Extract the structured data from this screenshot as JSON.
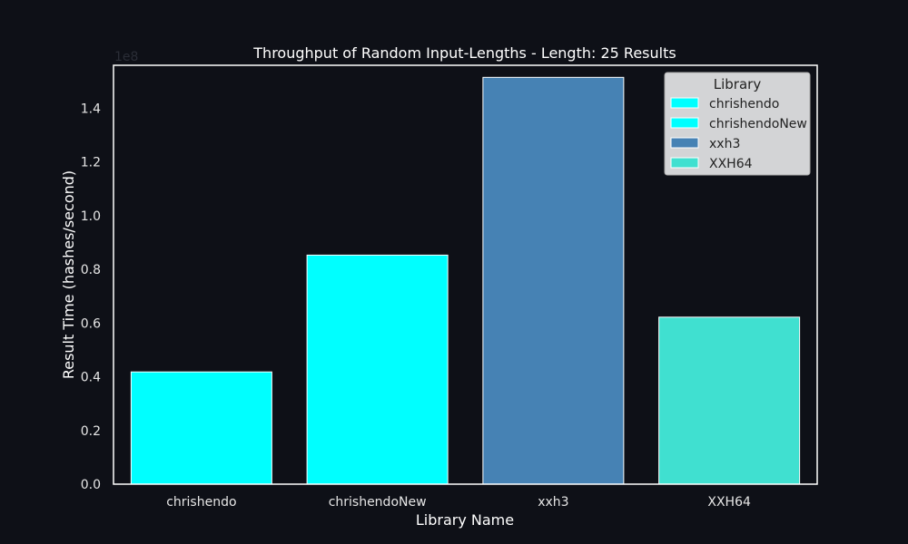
{
  "chart_data": {
    "type": "bar",
    "title": "Throughput of Random Input-Lengths - Length: 25 Results",
    "xlabel": "Library Name",
    "ylabel": "Result Time (hashes/second)",
    "y_offset_label": "1e8",
    "y_scale_factor": 100000000,
    "categories": [
      "chrishendo",
      "chrishendoNew",
      "xxh3",
      "XXH64"
    ],
    "values": [
      41800000,
      85300000,
      151500000,
      62200000
    ],
    "colors": [
      "#00ffff",
      "#00ffff",
      "#4682b4",
      "#40e0d0"
    ],
    "ylim": [
      0,
      156000000
    ],
    "yticks": [
      0,
      20000000,
      40000000,
      60000000,
      80000000,
      100000000,
      120000000,
      140000000
    ],
    "ytick_labels": [
      "0.0",
      "0.2",
      "0.4",
      "0.6",
      "0.8",
      "1.0",
      "1.2",
      "1.4"
    ],
    "grid": false,
    "legend": {
      "title": "Library",
      "placement": "top-right",
      "entries": [
        {
          "label": "chrishendo",
          "color": "#00ffff"
        },
        {
          "label": "chrishendoNew",
          "color": "#00ffff"
        },
        {
          "label": "xxh3",
          "color": "#4682b4"
        },
        {
          "label": "XXH64",
          "color": "#40e0d0"
        }
      ]
    }
  }
}
